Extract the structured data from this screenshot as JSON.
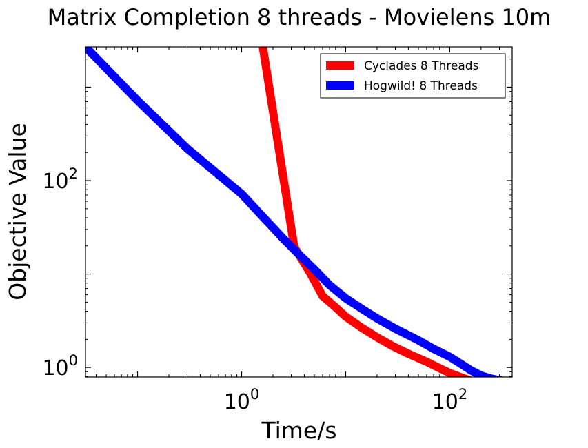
{
  "chart_data": {
    "type": "line",
    "title": "Matrix Completion 8 threads - Movielens 10m",
    "xlabel": "Time/s",
    "ylabel": "Objective Value",
    "xscale": "log",
    "yscale": "log",
    "xlim": [
      0.0316,
      398
    ],
    "ylim": [
      0.79,
      2700
    ],
    "xticks": [
      {
        "base": "10",
        "exp": "0",
        "value": 1
      },
      {
        "base": "10",
        "exp": "2",
        "value": 100
      }
    ],
    "yticks": [
      {
        "base": "10",
        "exp": "0",
        "value": 1
      },
      {
        "base": "10",
        "exp": "2",
        "value": 100
      }
    ],
    "grid": false,
    "legend": "top-right",
    "series": [
      {
        "name": "Cyclades 8 Threads",
        "color": "#ff0000",
        "x": [
          1.6,
          3.2,
          4.5,
          6,
          8,
          10,
          14,
          20,
          28,
          40,
          60,
          80,
          100,
          130,
          160,
          220,
          300,
          398
        ],
        "y": [
          2700,
          19.5,
          10.5,
          5.8,
          4.4,
          3.5,
          2.7,
          2.1,
          1.7,
          1.4,
          1.15,
          0.98,
          0.87,
          0.78,
          0.72,
          0.65,
          0.62,
          0.6
        ]
      },
      {
        "name": "Hogwild! 8 Threads",
        "color": "#0000ff",
        "x": [
          0.0316,
          0.1,
          0.3,
          1,
          2.5,
          3.5,
          5,
          7,
          10,
          15,
          20,
          30,
          50,
          70,
          100,
          130,
          160,
          200,
          250,
          300,
          398
        ],
        "y": [
          2700,
          720,
          220,
          72,
          24,
          16.5,
          11.2,
          7.6,
          5.5,
          4.1,
          3.35,
          2.6,
          1.95,
          1.58,
          1.3,
          1.08,
          0.93,
          0.82,
          0.76,
          0.73,
          0.69
        ]
      }
    ]
  }
}
